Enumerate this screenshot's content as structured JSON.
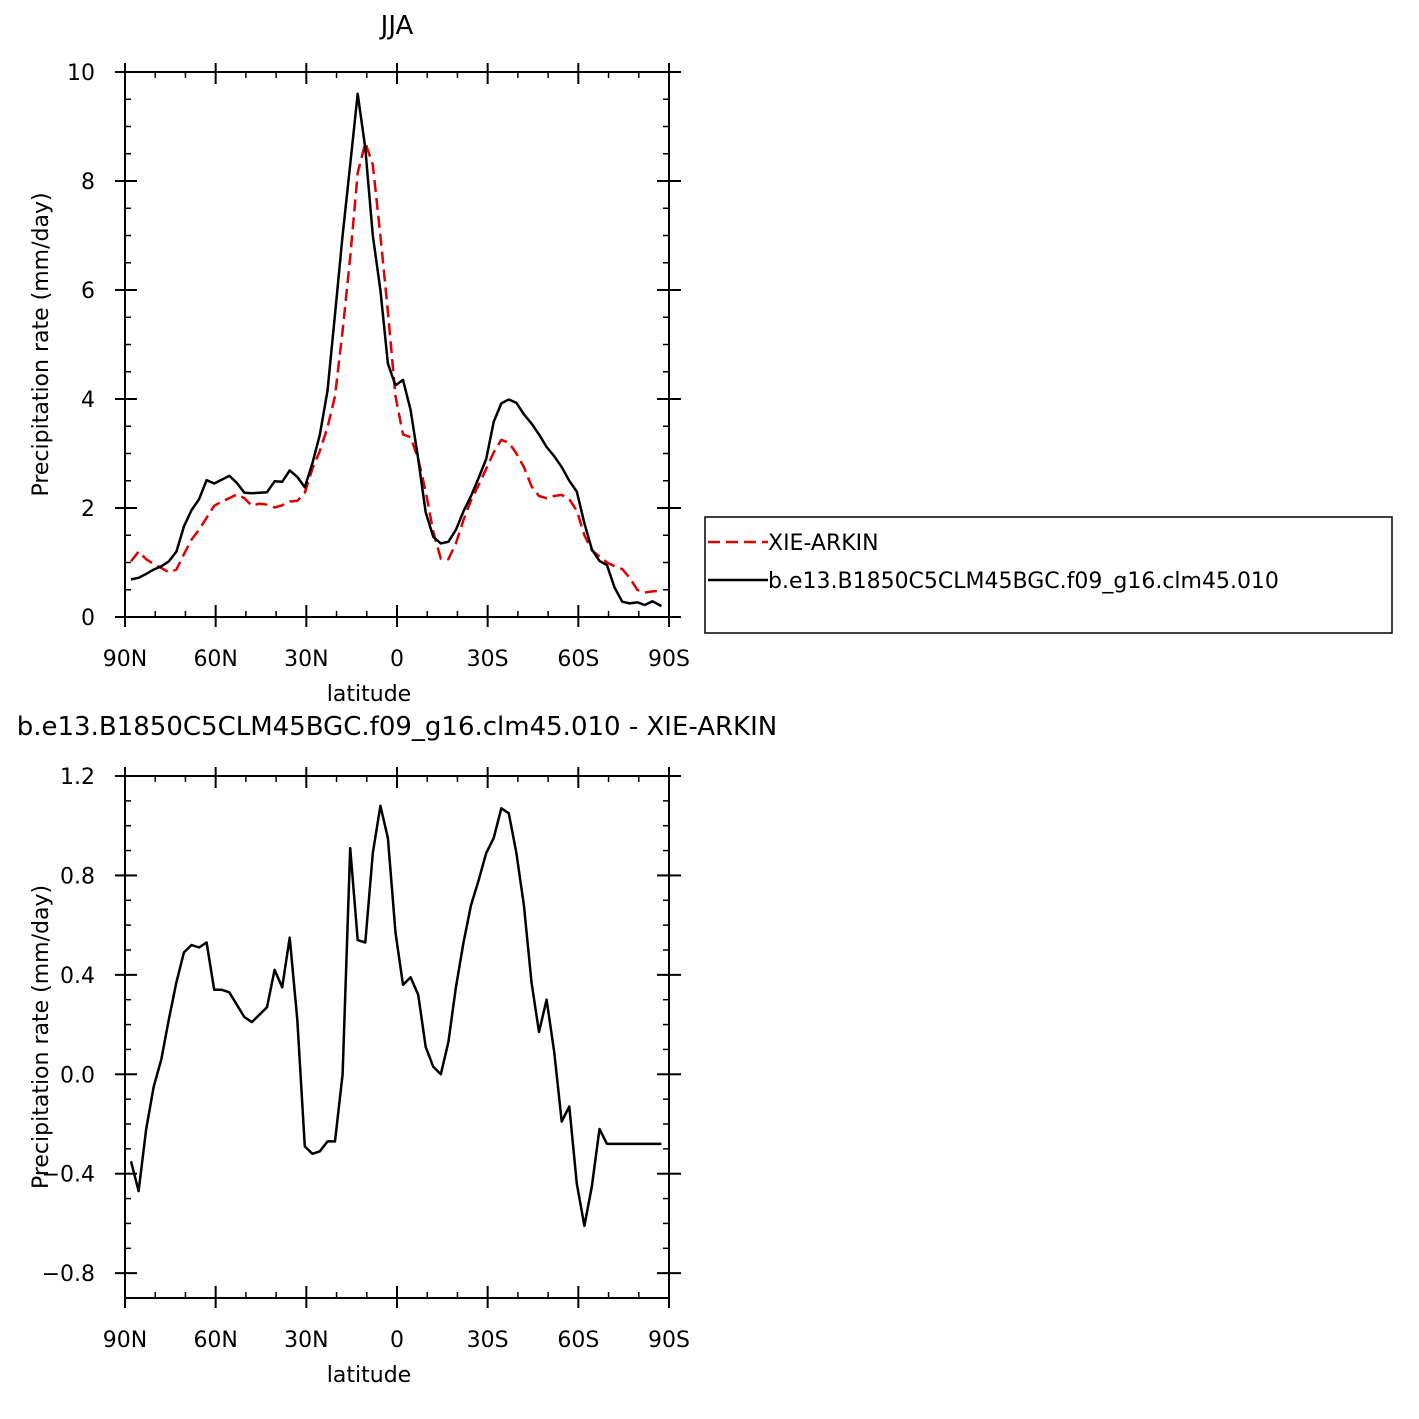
{
  "chart_data": [
    {
      "type": "line",
      "title": "JJA",
      "xlabel": "latitude",
      "ylabel": "Precipitation rate (mm/day)",
      "xlim": [
        -90,
        90
      ],
      "ylim": [
        0,
        10
      ],
      "x_ticks": [
        -90,
        -60,
        -30,
        0,
        30,
        60,
        90
      ],
      "x_tick_labels": [
        "90N",
        "60N",
        "30N",
        "0",
        "30S",
        "60S",
        "90S"
      ],
      "y_ticks": [
        0,
        2,
        4,
        6,
        8,
        10
      ],
      "y_tick_labels": [
        "0",
        "2",
        "4",
        "6",
        "8",
        "10"
      ],
      "legend_position": "right",
      "series": [
        {
          "name": "XIE-ARKIN",
          "color": "#e00000",
          "dash": "dashed",
          "x": [
            -88,
            -85.5,
            -83,
            -80.5,
            -78,
            -75.5,
            -73,
            -70.5,
            -68,
            -65.5,
            -63,
            -60.5,
            -58,
            -55.5,
            -53,
            -50.5,
            -48,
            -45.5,
            -43,
            -40.5,
            -38,
            -35.5,
            -33,
            -30.5,
            -28,
            -25.5,
            -23,
            -20.5,
            -18,
            -15.5,
            -13,
            -10.5,
            -8,
            -5.5,
            -3,
            -0.5,
            2,
            4.5,
            7,
            9.5,
            12,
            14.5,
            17,
            19.5,
            22,
            24.5,
            27,
            29.5,
            32,
            34.5,
            37,
            39.5,
            42,
            44.5,
            47,
            49.5,
            52,
            54.5,
            57,
            59.5,
            62,
            64.5,
            67,
            69.5,
            72,
            74.5,
            77,
            79.5,
            82,
            84.5,
            87.5
          ],
          "values": [
            1.02,
            1.2,
            1.06,
            0.97,
            0.9,
            0.82,
            0.87,
            1.15,
            1.42,
            1.6,
            1.82,
            2.04,
            2.12,
            2.18,
            2.25,
            2.18,
            2.04,
            2.08,
            2.06,
            2.01,
            2.05,
            2.12,
            2.13,
            2.28,
            2.72,
            3.05,
            3.48,
            4.05,
            5.25,
            6.6,
            8.15,
            8.7,
            8.3,
            7.0,
            5.6,
            4.05,
            3.35,
            3.3,
            2.9,
            2.3,
            1.56,
            1.07,
            1.06,
            1.35,
            1.78,
            2.14,
            2.42,
            2.72,
            3.02,
            3.25,
            3.2,
            3.0,
            2.75,
            2.4,
            2.22,
            2.18,
            2.22,
            2.24,
            2.16,
            1.95,
            1.5,
            1.22,
            1.11,
            1.0,
            0.93,
            0.88,
            0.72,
            0.5,
            0.45,
            0.47,
            0.48
          ]
        },
        {
          "name": "b.e13.B1850C5CLM45BGC.f09_g16.clm45.010",
          "color": "#000000",
          "dash": "solid",
          "x": [
            -88,
            -85.5,
            -83,
            -80.5,
            -78,
            -75.5,
            -73,
            -70.5,
            -68,
            -65.5,
            -63,
            -60.5,
            -58,
            -55.5,
            -53,
            -50.5,
            -48,
            -45.5,
            -43,
            -40.5,
            -38,
            -35.5,
            -33,
            -30.5,
            -28,
            -25.5,
            -23,
            -20.5,
            -18,
            -15.5,
            -13,
            -10.5,
            -8,
            -5.5,
            -3,
            -0.5,
            2,
            4.5,
            7,
            9.5,
            12,
            14.5,
            17,
            19.5,
            22,
            24.5,
            27,
            29.5,
            32,
            34.5,
            37,
            39.5,
            42,
            44.5,
            47,
            49.5,
            52,
            54.5,
            57,
            59.5,
            62,
            64.5,
            67,
            69.5,
            72,
            74.5,
            77,
            79.5,
            82,
            84.5,
            87.5
          ],
          "values": [
            0.69,
            0.72,
            0.79,
            0.87,
            0.93,
            1.02,
            1.2,
            1.66,
            1.96,
            2.16,
            2.51,
            2.45,
            2.52,
            2.59,
            2.46,
            2.28,
            2.27,
            2.28,
            2.29,
            2.49,
            2.48,
            2.69,
            2.57,
            2.38,
            2.82,
            3.35,
            4.15,
            5.55,
            7.0,
            8.3,
            9.6,
            8.6,
            7.0,
            6.0,
            4.65,
            4.25,
            4.35,
            3.8,
            2.9,
            1.92,
            1.47,
            1.35,
            1.38,
            1.6,
            1.94,
            2.22,
            2.55,
            2.9,
            3.58,
            3.92,
            3.99,
            3.93,
            3.72,
            3.55,
            3.35,
            3.12,
            2.95,
            2.75,
            2.5,
            2.3,
            1.72,
            1.24,
            1.03,
            0.95,
            0.54,
            0.28,
            0.25,
            0.27,
            0.22,
            0.29,
            0.2
          ]
        }
      ]
    },
    {
      "type": "line",
      "title": "b.e13.B1850C5CLM45BGC.f09_g16.clm45.010 - XIE-ARKIN",
      "xlabel": "latitude",
      "ylabel": "Precipitation rate (mm/day)",
      "xlim": [
        -90,
        90
      ],
      "ylim": [
        -0.9,
        1.2
      ],
      "x_ticks": [
        -90,
        -60,
        -30,
        0,
        30,
        60,
        90
      ],
      "x_tick_labels": [
        "90N",
        "60N",
        "30N",
        "0",
        "30S",
        "60S",
        "90S"
      ],
      "y_ticks": [
        -0.8,
        -0.4,
        0.0,
        0.4,
        0.8,
        1.2
      ],
      "y_tick_labels": [
        "−0.8",
        "−0.4",
        "0.0",
        "0.4",
        "0.8",
        "1.2"
      ],
      "series": [
        {
          "color": "#000000",
          "dash": "solid",
          "x": [
            -88,
            -85.5,
            -83,
            -80.5,
            -78,
            -75.5,
            -73,
            -70.5,
            -68,
            -65.5,
            -63,
            -60.5,
            -58,
            -55.5,
            -53,
            -50.5,
            -48,
            -45.5,
            -43,
            -40.5,
            -38,
            -35.5,
            -33,
            -30.5,
            -28,
            -25.5,
            -23,
            -20.5,
            -18,
            -15.5,
            -13,
            -10.5,
            -8,
            -5.5,
            -3,
            -0.5,
            2,
            4.5,
            7,
            9.5,
            12,
            14.5,
            17,
            19.5,
            22,
            24.5,
            27,
            29.5,
            32,
            34.5,
            37,
            39.5,
            42,
            44.5,
            47,
            49.5,
            52,
            54.5,
            57,
            59.5,
            62,
            64.5,
            67,
            69.5,
            72,
            74.5,
            77,
            79.5,
            82,
            84.5,
            87.5
          ],
          "values": [
            -0.35,
            -0.47,
            -0.22,
            -0.05,
            0.06,
            0.22,
            0.37,
            0.49,
            0.52,
            0.51,
            0.53,
            0.34,
            0.34,
            0.33,
            0.28,
            0.23,
            0.21,
            0.24,
            0.27,
            0.42,
            0.35,
            0.55,
            0.22,
            -0.29,
            -0.32,
            -0.31,
            -0.27,
            -0.27,
            0.0,
            0.91,
            0.54,
            0.53,
            0.89,
            1.08,
            0.95,
            0.57,
            0.36,
            0.39,
            0.32,
            0.11,
            0.03,
            0.0,
            0.13,
            0.35,
            0.53,
            0.68,
            0.78,
            0.89,
            0.95,
            1.07,
            1.05,
            0.89,
            0.68,
            0.37,
            0.17,
            0.3,
            0.09,
            -0.19,
            -0.13,
            -0.44,
            -0.61,
            -0.45,
            -0.22,
            -0.28,
            -0.28,
            -0.28,
            -0.28,
            -0.28,
            -0.28,
            -0.28,
            -0.28
          ]
        }
      ]
    }
  ]
}
